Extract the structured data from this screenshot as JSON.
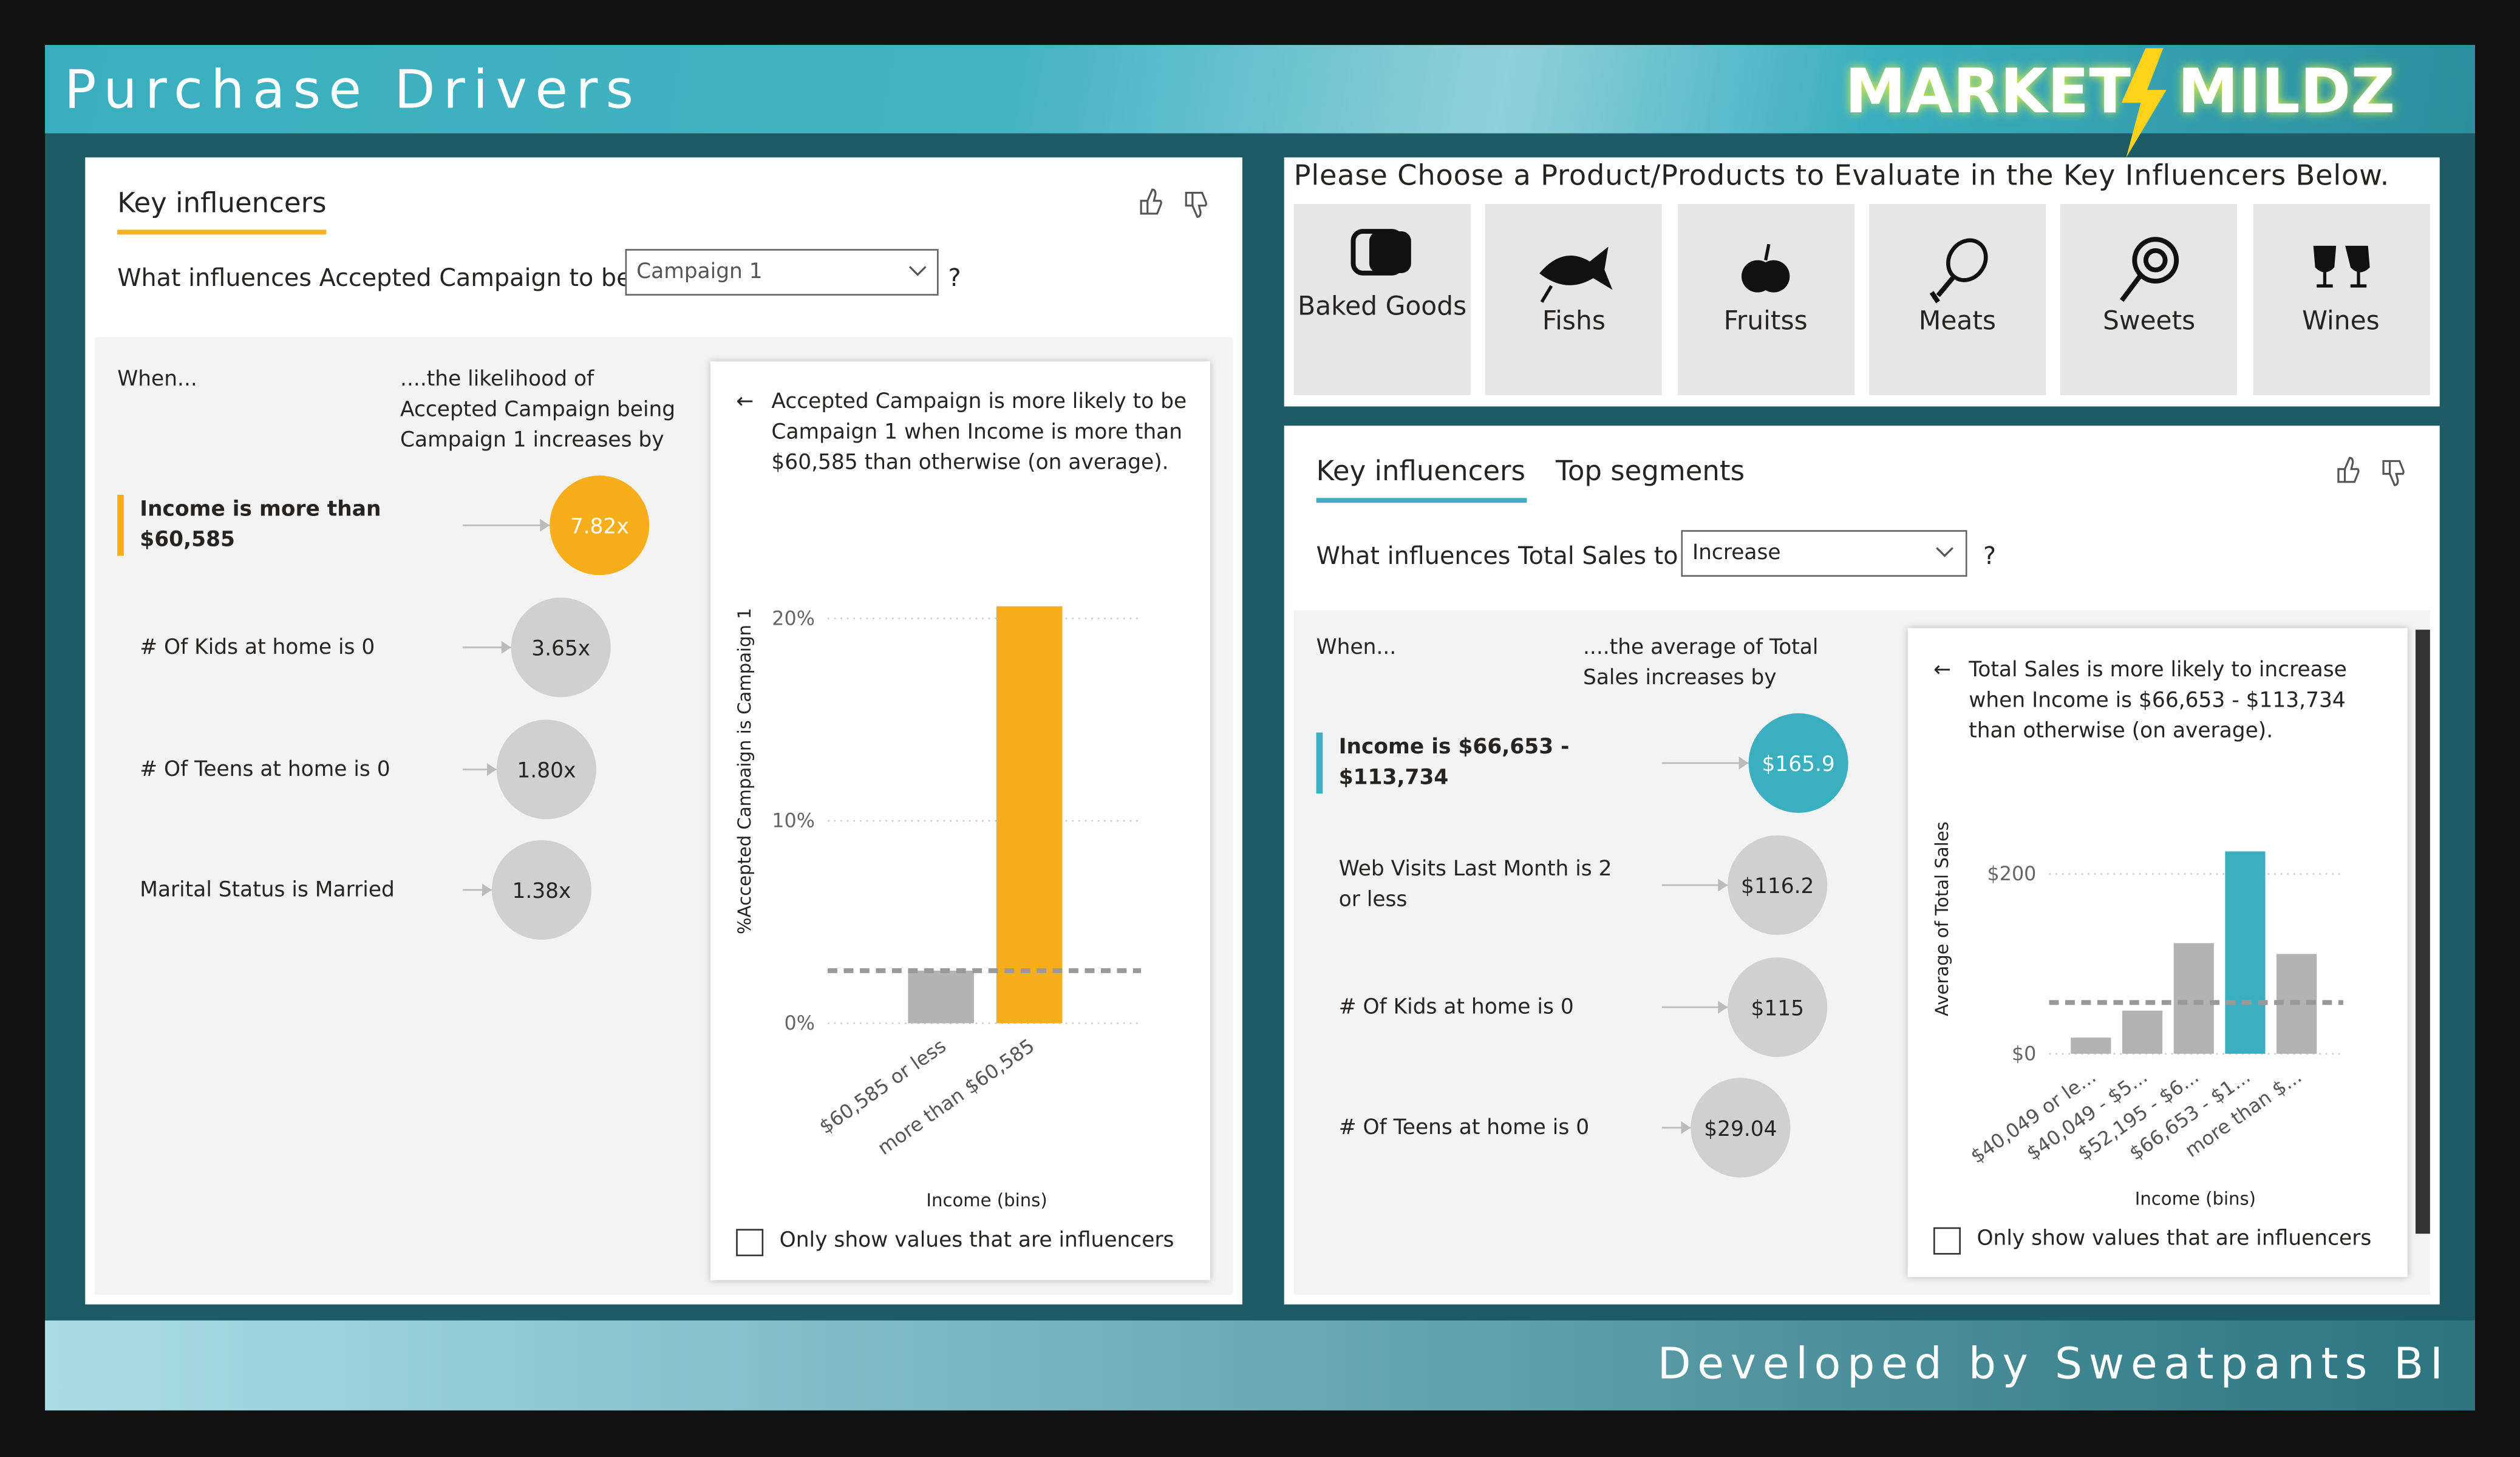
{
  "header": {
    "title": "Purchase Drivers",
    "logo_left": "MARKET",
    "logo_right": "MILDZ"
  },
  "footer": {
    "text": "Developed by Sweatpants BI"
  },
  "left_panel": {
    "tab": "Key influencers",
    "question": "What influences Accepted Campaign to be",
    "dropdown": "Campaign 1",
    "question_mark": "?",
    "when_header": "When...",
    "effect_header": "....the likelihood of Accepted Campaign being Campaign 1 increases by",
    "influencers": [
      {
        "label": "Income is more than $60,585",
        "value": "7.82x"
      },
      {
        "label": "# Of Kids at home is 0",
        "value": "3.65x"
      },
      {
        "label": "# Of Teens at home is 0",
        "value": "1.80x"
      },
      {
        "label": "Marital Status is Married",
        "value": "1.38x"
      }
    ],
    "detail": "Accepted Campaign is more likely to be Campaign 1 when Income is more than $60,585 than otherwise (on average).",
    "chart": {
      "type": "bar",
      "y_label": "%Accepted Campaign is Campaign 1",
      "x_label": "Income (bins)",
      "categories": [
        "$60,585 or less",
        "more than $60,585"
      ],
      "values": [
        2.6,
        20.6
      ],
      "colors": [
        "#b3b3b3",
        "#f8ae1a"
      ],
      "average": 2.6,
      "ylim": [
        0,
        21
      ],
      "yticks": [
        {
          "value": 0,
          "label": "0%"
        },
        {
          "value": 10,
          "label": "10%"
        },
        {
          "value": 20,
          "label": "20%"
        }
      ],
      "grid": true
    },
    "checkbox": "Only show values that are influencers"
  },
  "products": {
    "prompt": "Please Choose a Product/Products to Evaluate in the Key Influencers Below.",
    "items": [
      "Baked Goods",
      "Fishs",
      "Fruitss",
      "Meats",
      "Sweets",
      "Wines"
    ]
  },
  "right_panel": {
    "tabs": [
      "Key influencers",
      "Top segments"
    ],
    "question": "What influences Total Sales to",
    "dropdown": "Increase",
    "question_mark": "?",
    "when_header": "When...",
    "effect_header": "....the average of Total Sales increases by",
    "influencers": [
      {
        "label": "Income is $66,653 - $113,734",
        "value": "$165.9"
      },
      {
        "label": "Web Visits Last Month is 2 or less",
        "value": "$116.2"
      },
      {
        "label": "# Of Kids at home is 0",
        "value": "$115"
      },
      {
        "label": "# Of Teens at home is 0",
        "value": "$29.04"
      }
    ],
    "detail": "Total Sales is more likely to increase when Income is $66,653 - $113,734 than otherwise (on average).",
    "chart": {
      "type": "bar",
      "y_label": "Average of Total Sales",
      "x_label": "Income (bins)",
      "categories": [
        "$40,049 or le...",
        "$40,049 - $5...",
        "$52,195 - $6...",
        "$66,653 - $1...",
        "more than $..."
      ],
      "values": [
        18,
        48,
        123,
        225,
        111
      ],
      "colors": [
        "#b3b3b3",
        "#b3b3b3",
        "#b3b3b3",
        "#3aafbf",
        "#b3b3b3"
      ],
      "average": 57,
      "ylim": [
        0,
        240
      ],
      "yticks": [
        {
          "value": 0,
          "label": "$0"
        },
        {
          "value": 200,
          "label": "$200"
        }
      ],
      "grid": true
    },
    "checkbox": "Only show values that are influencers"
  }
}
